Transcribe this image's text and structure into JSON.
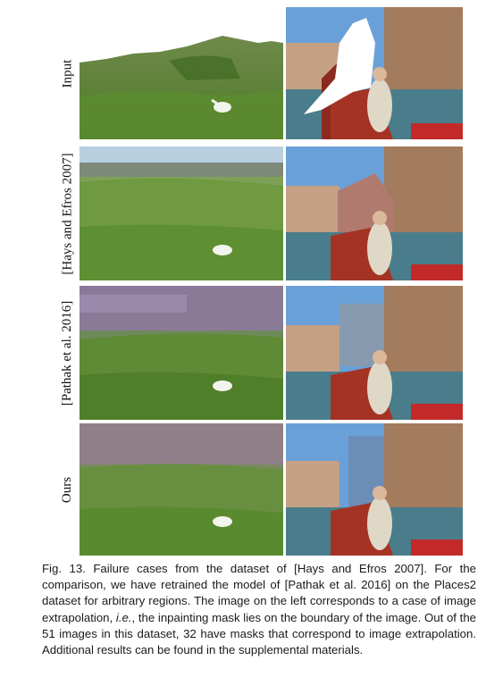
{
  "figure": {
    "rows": [
      {
        "label": "Input"
      },
      {
        "label": "[Hays and Efros 2007]"
      },
      {
        "label": "[Pathak et al. 2016]"
      },
      {
        "label": "Ours"
      }
    ],
    "caption": {
      "figure_number": "Fig. 13.",
      "text_part1": "Failure cases from the dataset of [Hays and Efros 2007]. For the comparison, we have retrained the model of [Pathak et al. 2016] on the Places2 dataset for arbitrary regions. The image on the left corresponds to a case of image extrapolation, ",
      "text_italic": "i.e.",
      "text_part2": ", the inpainting mask lies on the boundary of the image. Out of the 51 images in this dataset, 32 have masks that correspond to image extrapolation. Additional results can be found in the supplemental materials."
    }
  }
}
